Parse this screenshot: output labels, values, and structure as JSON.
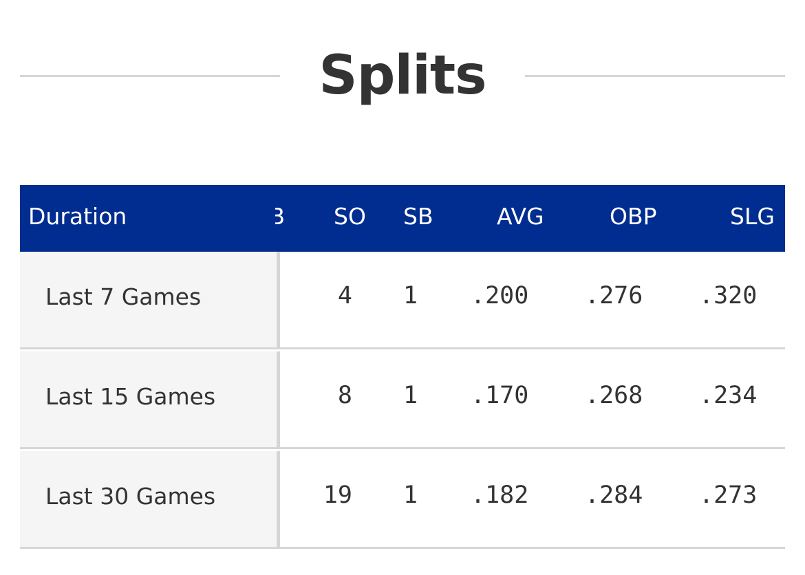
{
  "section": {
    "title": "Splits"
  },
  "table": {
    "headers": {
      "duration": "Duration",
      "partial": "B",
      "so": "SO",
      "sb": "SB",
      "avg": "AVG",
      "obp": "OBP",
      "slg": "SLG"
    },
    "rows": [
      {
        "duration": "Last 7 Games",
        "so": "4",
        "sb": "1",
        "avg": ".200",
        "obp": ".276",
        "slg": ".320"
      },
      {
        "duration": "Last 15 Games",
        "so": "8",
        "sb": "1",
        "avg": ".170",
        "obp": ".268",
        "slg": ".234"
      },
      {
        "duration": "Last 30 Games",
        "so": "19",
        "sb": "1",
        "avg": ".182",
        "obp": ".284",
        "slg": ".273"
      }
    ]
  },
  "colors": {
    "header_bg": "#002d8f",
    "label_col_bg": "#f5f5f5",
    "divider": "#d6d6d6",
    "text": "#333333"
  }
}
